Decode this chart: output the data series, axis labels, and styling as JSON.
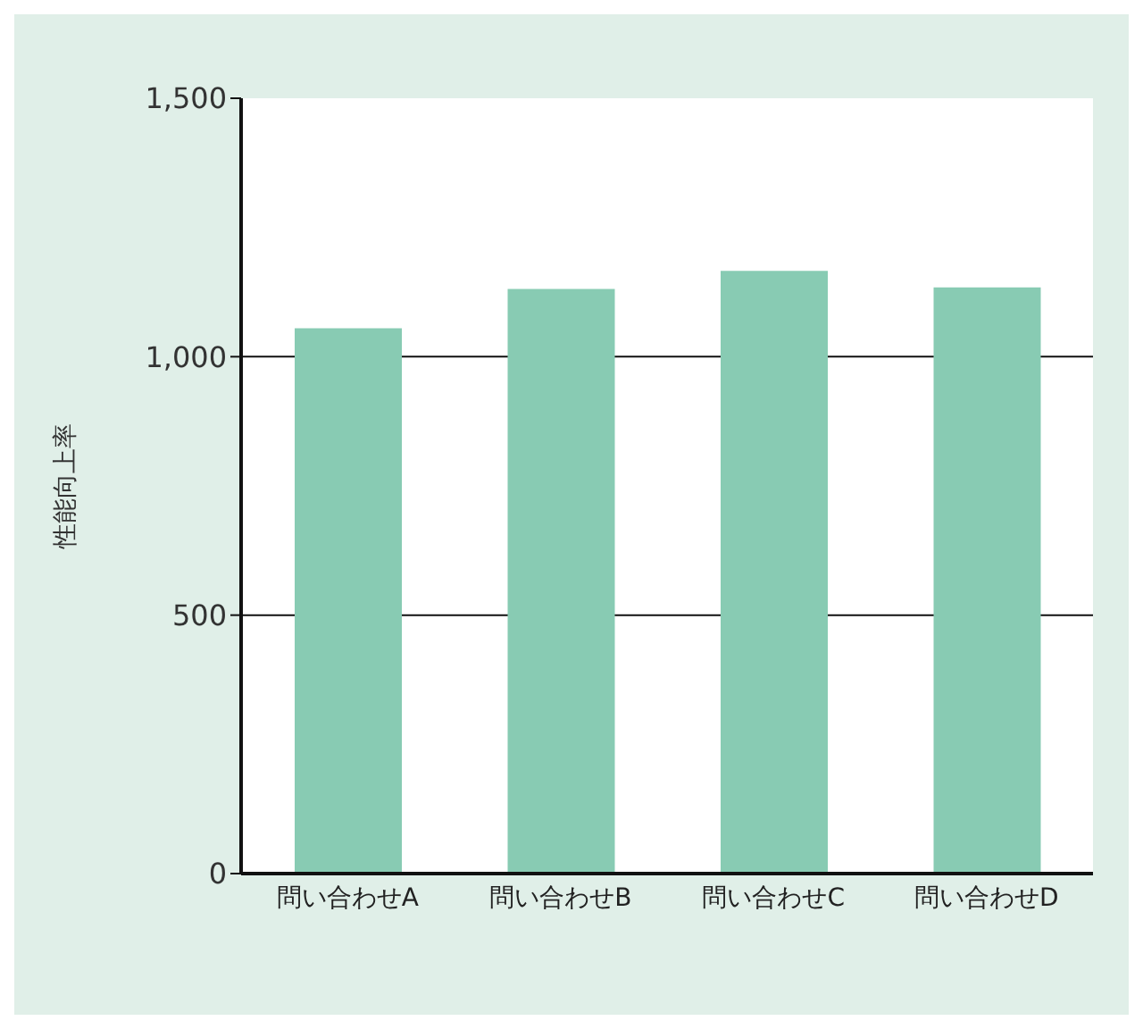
{
  "chart_data": {
    "type": "bar",
    "ylabel": "性能向上率",
    "categories": [
      "問い合わせA",
      "問い合わせB",
      "問い合わせC",
      "問い合わせD"
    ],
    "values": [
      1055,
      1131,
      1166,
      1134
    ],
    "color": "#88cbb3",
    "ylim": [
      0,
      1500
    ],
    "yticks": [
      0,
      500,
      {
        "value": 1000,
        "label": "1,000"
      },
      {
        "value": 1500,
        "label": "1,500"
      }
    ],
    "grid": "y"
  }
}
